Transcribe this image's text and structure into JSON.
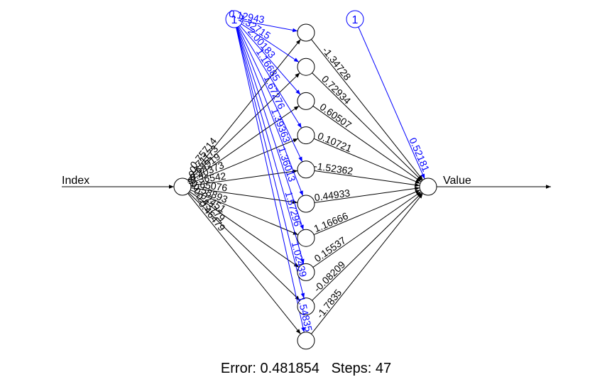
{
  "input": {
    "label": "Index"
  },
  "output": {
    "label": "Value"
  },
  "bias_label": "1",
  "colors": {
    "weights": "#000000",
    "bias": "#0000ff",
    "background": "#ffffff"
  },
  "hidden_count": 10,
  "input_weights": [
    "0.75714",
    "0.71173",
    "0.64919",
    "-0.40373",
    "-0.36542",
    "-0.65076",
    "-0.58893",
    "0.02451",
    "0.43779",
    "-0.46479"
  ],
  "hidden_bias_weights": [
    "0.12943",
    "1.32715",
    "2.00183",
    "1.16685",
    "1.67276",
    "1.39363",
    "1.36013",
    "1.57296",
    "1.02439",
    "1.54835"
  ],
  "output_weights": [
    "-1.34728",
    "0.72934",
    "0.60507",
    "0.10721",
    "-1.52362",
    "0.44933",
    "1.16666",
    "0.15537",
    "-0.08209",
    "-1.7835"
  ],
  "output_bias_weight": "0.52181",
  "footer": {
    "error_label": "Error:",
    "error_value": "0.481854",
    "steps_label": "Steps:",
    "steps_value": "47"
  }
}
